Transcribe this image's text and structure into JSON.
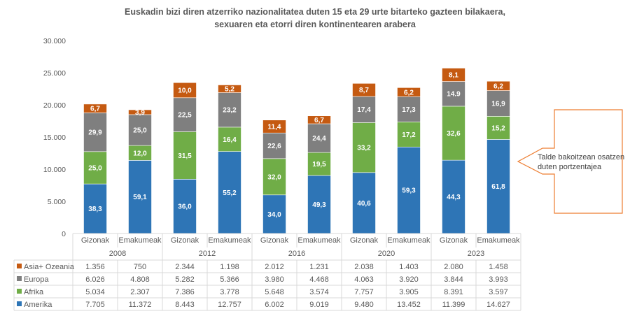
{
  "chart_data": {
    "type": "bar",
    "stacked": true,
    "title": "Euskadin bizi diren atzerriko nazionalitatea duten 15 eta 29 urte bitarteko gazteen bilakaera, sexuaren eta etorri diren kontinentearen arabera",
    "title_lines": [
      "Euskadin bizi diren atzerriko nazionalitatea duten 15 eta 29 urte bitarteko gazteen bilakaera,",
      "sexuaren eta etorri diren kontinentearen arabera"
    ],
    "xlabel": "",
    "ylabel": "",
    "ylim": [
      0,
      30000
    ],
    "yticks": [
      0,
      5000,
      10000,
      15000,
      20000,
      25000,
      30000
    ],
    "ytick_labels": [
      "0",
      "5.000",
      "10.000",
      "15.000",
      "20.000",
      "25.000",
      "30.000"
    ],
    "grid": false,
    "legend_placement": "in data table (left)",
    "groups": [
      {
        "year": "2008",
        "categories": [
          "Gizonak",
          "Emakumeak"
        ]
      },
      {
        "year": "2012",
        "categories": [
          "Gizonak",
          "Emakumeak"
        ]
      },
      {
        "year": "2016",
        "categories": [
          "Gizonak",
          "Emakumeak"
        ]
      },
      {
        "year": "2020",
        "categories": [
          "Gizonak",
          "Emakumeak"
        ]
      },
      {
        "year": "2023",
        "categories": [
          "Gizonak",
          "Emakumeak"
        ]
      }
    ],
    "categories": [
      "Gizonak",
      "Emakumeak",
      "Gizonak",
      "Emakumeak",
      "Gizonak",
      "Emakumeak",
      "Gizonak",
      "Emakumeak",
      "Gizonak",
      "Emakumeak"
    ],
    "series": [
      {
        "name": "Amerika",
        "color": "#2E75B6",
        "values": [
          7705,
          11372,
          8443,
          12757,
          6002,
          9019,
          9480,
          13452,
          11399,
          14627
        ],
        "value_labels": [
          "7.705",
          "11.372",
          "8.443",
          "12.757",
          "6.002",
          "9.019",
          "9.480",
          "13.452",
          "11.399",
          "14.627"
        ],
        "percent_labels": [
          "38,3",
          "59,1",
          "36,0",
          "55,2",
          "34,0",
          "49,3",
          "40,6",
          "59,3",
          "44,3",
          "61,8"
        ]
      },
      {
        "name": "Afrika",
        "color": "#70AD47",
        "values": [
          5034,
          2307,
          7386,
          3778,
          5648,
          3574,
          7757,
          3905,
          8391,
          3597
        ],
        "value_labels": [
          "5.034",
          "2.307",
          "7.386",
          "3.778",
          "5.648",
          "3.574",
          "7.757",
          "3.905",
          "8.391",
          "3.597"
        ],
        "percent_labels": [
          "25,0",
          "12,0",
          "31,5",
          "16,4",
          "32,0",
          "19,5",
          "33,2",
          "17,2",
          "32,6",
          "15,2"
        ]
      },
      {
        "name": "Europa",
        "color": "#7F7F7F",
        "values": [
          6026,
          4808,
          5282,
          5366,
          3980,
          4468,
          4063,
          3920,
          3844,
          3993
        ],
        "value_labels": [
          "6.026",
          "4.808",
          "5.282",
          "5.366",
          "3.980",
          "4.468",
          "4.063",
          "3.920",
          "3.844",
          "3.993"
        ],
        "percent_labels": [
          "29,9",
          "25,0",
          "22,5",
          "23,2",
          "22,6",
          "24,4",
          "17,4",
          "17,3",
          "14.9",
          "16,9"
        ]
      },
      {
        "name": "Asia+ Ozeania",
        "color": "#C55A11",
        "values": [
          1356,
          750,
          2344,
          1198,
          2012,
          1231,
          2038,
          1403,
          2080,
          1458
        ],
        "value_labels": [
          "1.356",
          "750",
          "2.344",
          "1.198",
          "2.012",
          "1.231",
          "2.038",
          "1.403",
          "2.080",
          "1.458"
        ],
        "percent_labels": [
          "6,7",
          "3,9",
          "10,0",
          "5,2",
          "11,4",
          "6,7",
          "8,7",
          "6,2",
          "8,1",
          "6,2"
        ]
      }
    ],
    "table_row_order": [
      "Asia+ Ozeania",
      "Europa",
      "Afrika",
      "Amerika"
    ],
    "annotation": "Talde bakoitzean osatzen duten portzentajea"
  },
  "callout": {
    "lines": [
      "Talde bakoitzean osatzen",
      "duten portzentajea"
    ],
    "border_color": "#ED7D31"
  }
}
